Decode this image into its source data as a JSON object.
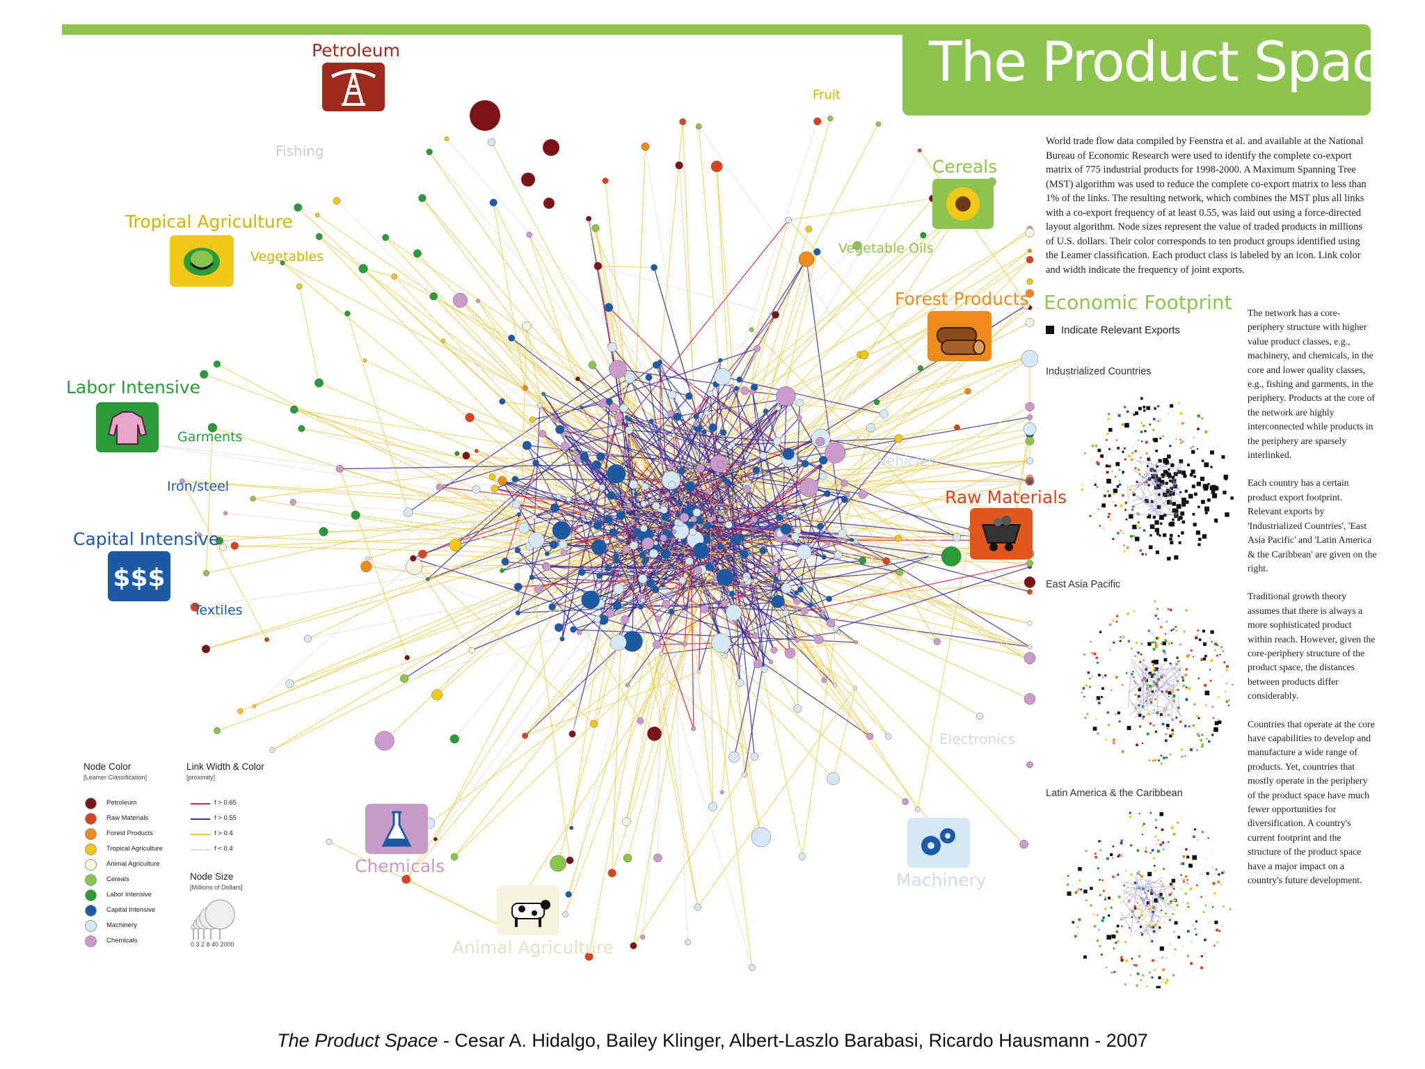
{
  "title": "The Product Space",
  "description": "World trade flow data compiled by Feenstra et al. and available at the National Bureau of Economic Research were used to identify the complete co-export matrix of 775 industrial products for 1998-2000. A Maximum Spanning Tree (MST) algorithm was used to reduce the complete co-export matrix to less than 1% of the links. The resulting network, which combines the MST plus all links with a co-export frequency of at least 0.55, was laid out using a force-directed layout algorithm. Node sizes represent the value of traded products in millions of U.S. dollars. Their color corresponds to ten product groups identified using the Leamer classification. Each product class is labeled by an icon. Link color and width indicate the frequency of joint exports.",
  "sidebar": {
    "p1": "The network has a core-periphery structure with higher value product classes, e.g., machinery, and chemicals, in the core and lower quality classes, e.g., fishing and garments, in the periphery. Products at the core of the network are highly interconnected while products in the periphery are sparsely interlinked.",
    "p2": "Each country has a certain product export footprint. Relevant exports by 'Industrialized Countries', 'East Asia Pacific' and 'Latin America & the Caribbean' are given on the right.",
    "p3": "Traditional growth theory assumes that there is always a more sophisticated product within reach. However, given the core-periphery structure of the product space, the distances between products differ considerably.",
    "p4": "Countries that operate at the core have capabilities to develop and manufacture a wide range of products. Yet, countries that mostly operate in the periphery of the product space have much fewer opportunities for diversification. A country's current footprint and the structure of the product space have a major impact on a country's future development."
  },
  "footprint": {
    "heading": "Economic Footprint",
    "legend_label": "Indicate Relevant Exports",
    "panels": [
      "Industrialized Countries",
      "East Asia Pacific",
      "Latin America & the Caribbean"
    ]
  },
  "categories": {
    "petroleum": "Petroleum",
    "fishing": "Fishing",
    "tropical_agriculture": "Tropical Agriculture",
    "vegetables": "Vegetables",
    "labor_intensive": "Labor Intensive",
    "garments": "Garments",
    "iron_steel": "Iron/steel",
    "capital_intensive": "Capital Intensive",
    "textiles": "Textiles",
    "fruit": "Fruit",
    "cereals": "Cereals",
    "vegetable_oils": "Vegetable Oils",
    "forest_products": "Forest Products",
    "vehicles": "Vehicles",
    "raw_materials": "Raw Materials",
    "electronics": "Electronics",
    "machinery": "Machinery",
    "chemicals": "Chemicals",
    "animal_agriculture": "Animal Agriculture"
  },
  "legend": {
    "node_color_title": "Node Color",
    "node_color_sub": "[Leamer Classification]",
    "items": [
      {
        "label": "Petroleum",
        "color": "#7b1416"
      },
      {
        "label": "Raw Materials",
        "color": "#d9441c"
      },
      {
        "label": "Forest Products",
        "color": "#ee8a1c"
      },
      {
        "label": "Tropical Agriculture",
        "color": "#f2c818"
      },
      {
        "label": "Animal Agriculture",
        "color": "#f6f3dc"
      },
      {
        "label": "Cereals",
        "color": "#8cc44f"
      },
      {
        "label": "Labor Intensive",
        "color": "#2b9a3a"
      },
      {
        "label": "Capital Intensive",
        "color": "#1d5aa6"
      },
      {
        "label": "Machinery",
        "color": "#d7e8f5"
      },
      {
        "label": "Chemicals",
        "color": "#cc99cc"
      }
    ],
    "link_title": "Link Width & Color",
    "link_sub": "[proximity]",
    "links": [
      {
        "label": "f > 0.65",
        "color": "#d4213d"
      },
      {
        "label": "f > 0.55",
        "color": "#3b3196"
      },
      {
        "label": "f > 0.4",
        "color": "#f0c43a"
      },
      {
        "label": "f < 0.4",
        "color": "#dddddd"
      }
    ],
    "size_title": "Node Size",
    "size_sub": "[Millions of Dollars]",
    "size_ticks": "0.3  2   8   40  2000"
  },
  "caption": {
    "italic": "The Product Space",
    "rest": "  - Cesar A. Hidalgo, Bailey Klinger, Albert-Laszlo Barabasi, Ricardo Hausmann - 2007"
  }
}
